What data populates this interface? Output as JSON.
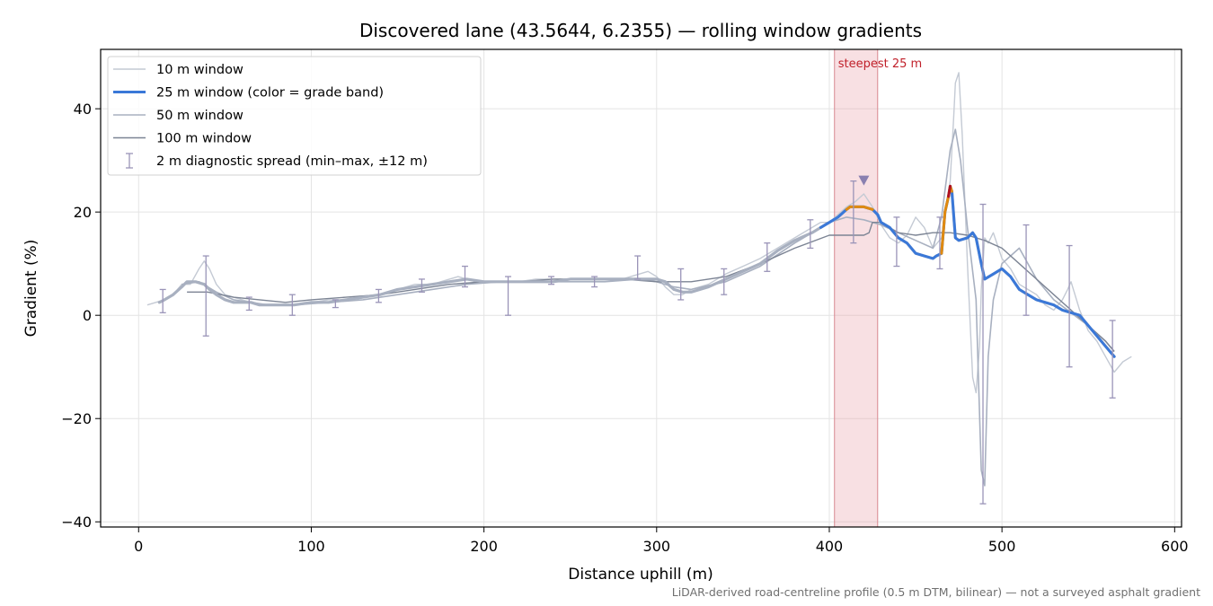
{
  "chart_data": {
    "type": "line",
    "title": "Discovered lane (43.5644, 6.2355) — rolling window gradients",
    "xlabel": "Distance uphill (m)",
    "ylabel": "Gradient (%)",
    "xlim": [
      -22,
      604
    ],
    "ylim": [
      -41,
      51.5
    ],
    "xticks": [
      0,
      100,
      200,
      300,
      400,
      500,
      600
    ],
    "yticks": [
      -40,
      -20,
      0,
      20,
      40
    ],
    "ytick_labels": [
      "−40",
      "−20",
      "0",
      "20",
      "40"
    ],
    "grid": true,
    "legend_position": "top-left",
    "footnote": "LiDAR-derived road-centreline profile (0.5 m DTM, bilinear) — not a surveyed asphalt gradient",
    "steepest_band": {
      "x_start": 403,
      "x_end": 428,
      "label": "steepest 25 m",
      "color": "#e8a0a8"
    },
    "peak_marker": {
      "x": 420,
      "y": 26,
      "color": "#8a80b0"
    },
    "colors": {
      "w10": "#c4cad4",
      "w25": "#3a78d8",
      "w50": "#a8b0c0",
      "w100": "#7c8494",
      "spread": "#9a94b8",
      "band_orange": "#e08a10",
      "band_red": "#b01020"
    },
    "series": [
      {
        "name": "10 m window",
        "key": "w10",
        "x": [
          5,
          10,
          15,
          20,
          25,
          30,
          35,
          38,
          41,
          45,
          50,
          55,
          60,
          65,
          70,
          80,
          90,
          100,
          110,
          120,
          130,
          140,
          150,
          160,
          170,
          180,
          185,
          190,
          195,
          200,
          210,
          220,
          230,
          240,
          250,
          260,
          270,
          280,
          285,
          290,
          295,
          300,
          305,
          310,
          315,
          320,
          330,
          340,
          350,
          360,
          370,
          380,
          390,
          395,
          400,
          405,
          410,
          415,
          420,
          425,
          430,
          435,
          440,
          445,
          450,
          455,
          460,
          465,
          468,
          470,
          472,
          473,
          475,
          477,
          480,
          483,
          485,
          487,
          488,
          490,
          492,
          495,
          500,
          505,
          510,
          515,
          520,
          525,
          530,
          535,
          538,
          540,
          545,
          550,
          555,
          560,
          565,
          570,
          575
        ],
        "y": [
          2,
          2.5,
          3,
          4,
          6,
          6,
          9,
          10.5,
          9,
          6,
          4,
          3.5,
          3,
          2.5,
          2,
          2,
          2,
          2.5,
          3,
          3,
          3.5,
          4,
          5,
          6,
          6,
          7,
          7.5,
          7,
          6.5,
          6.5,
          6.5,
          6.5,
          7,
          7,
          7,
          7,
          7,
          7,
          7.5,
          8,
          8.5,
          7.5,
          5.5,
          4,
          4,
          5,
          6,
          8,
          9.5,
          11,
          13,
          15,
          17,
          18,
          18,
          19.5,
          21,
          22,
          23.5,
          21,
          17.5,
          15,
          14,
          15.5,
          19,
          17,
          13,
          15,
          22,
          26,
          38,
          45,
          47,
          35,
          10,
          -12,
          -15,
          -6,
          5,
          15,
          14,
          16,
          11,
          9,
          6,
          5,
          4,
          2,
          1,
          3,
          5,
          6.5,
          1,
          -3,
          -5,
          -8,
          -11,
          -9,
          -8
        ]
      },
      {
        "name": "25 m window (color = grade band)",
        "key": "w25",
        "x": [
          12,
          15,
          20,
          25,
          28,
          33,
          38,
          41,
          45,
          50,
          55,
          60,
          65,
          70,
          80,
          90,
          100,
          110,
          120,
          130,
          140,
          150,
          160,
          170,
          180,
          190,
          200,
          210,
          220,
          230,
          240,
          250,
          260,
          270,
          280,
          290,
          300,
          305,
          310,
          315,
          320,
          330,
          340,
          350,
          360,
          370,
          380,
          390,
          395,
          400,
          405,
          410,
          412,
          415,
          420,
          425,
          428,
          430,
          435,
          440,
          445,
          450,
          455,
          460,
          462,
          465,
          467,
          469,
          470,
          471,
          473,
          475,
          480,
          483,
          485,
          488,
          490,
          495,
          500,
          505,
          510,
          515,
          520,
          525,
          530,
          535,
          540,
          545,
          550,
          555,
          560,
          565
        ],
        "y": [
          2.5,
          3,
          4,
          5.5,
          6.5,
          6.5,
          6,
          5,
          4,
          3,
          2.5,
          2.5,
          2.5,
          2,
          2,
          2,
          2.5,
          2.5,
          3,
          3.5,
          4,
          5,
          5.5,
          6,
          6.5,
          7,
          6.5,
          6.5,
          6.5,
          6.5,
          6.5,
          7,
          7,
          7,
          7,
          7,
          7,
          6.5,
          5,
          4.5,
          4.5,
          5.5,
          7,
          8.5,
          10,
          12.5,
          14.5,
          16,
          17,
          18,
          19,
          20.5,
          21,
          21,
          21,
          20.5,
          19.5,
          18,
          17,
          15,
          14,
          12,
          11.5,
          11,
          11.5,
          12,
          20,
          23,
          25,
          24,
          15,
          14.5,
          15,
          16,
          15,
          10,
          7,
          8,
          9,
          7.5,
          5,
          4,
          3,
          2.5,
          2,
          1,
          0.5,
          0,
          -2,
          -4,
          -6,
          -8
        ],
        "bands": [
          {
            "from": 408,
            "to": 427,
            "color_key": "band_orange"
          },
          {
            "from": 465,
            "to": 471,
            "color_key": "band_orange"
          },
          {
            "from": 468,
            "to": 470,
            "color_key": "band_red"
          }
        ]
      },
      {
        "name": "50 m window",
        "key": "w50",
        "x": [
          25,
          35,
          45,
          55,
          65,
          75,
          90,
          110,
          130,
          150,
          170,
          190,
          210,
          230,
          250,
          270,
          290,
          300,
          310,
          320,
          340,
          360,
          380,
          400,
          410,
          420,
          430,
          440,
          450,
          460,
          465,
          470,
          473,
          476,
          480,
          485,
          488,
          490,
          492,
          495,
          500,
          510,
          520,
          530,
          540,
          550,
          560,
          565
        ],
        "y": [
          6,
          6.5,
          4.5,
          3,
          2.5,
          2,
          2,
          2.5,
          3,
          4,
          5,
          6,
          6.5,
          6.5,
          6.5,
          6.5,
          7,
          6.5,
          5.5,
          5,
          6.5,
          9.5,
          14,
          18,
          19,
          18.5,
          17.5,
          16,
          14.5,
          13,
          19,
          32,
          36,
          30,
          17,
          3,
          -30,
          -33,
          -8,
          3,
          10,
          13,
          7,
          3,
          0.5,
          -2,
          -5,
          -7
        ]
      },
      {
        "name": "100 m window",
        "key": "w100",
        "x": [
          28,
          40,
          55,
          70,
          85,
          100,
          120,
          140,
          160,
          180,
          200,
          220,
          240,
          260,
          280,
          300,
          320,
          340,
          360,
          380,
          400,
          410,
          420,
          423,
          425,
          430,
          440,
          450,
          460,
          470,
          480,
          490,
          500,
          510,
          520,
          530,
          540,
          550,
          560,
          565
        ],
        "y": [
          4.5,
          4.5,
          3.5,
          3,
          2.5,
          3,
          3.5,
          4,
          5,
          6,
          6.5,
          6.5,
          7,
          7,
          7,
          6.5,
          6.5,
          7.5,
          10,
          13,
          15.5,
          15.5,
          15.5,
          16,
          18,
          18,
          16,
          15.5,
          16,
          16,
          15.5,
          14.5,
          13,
          10,
          7,
          4,
          1,
          -2,
          -5,
          -7
        ]
      }
    ],
    "spread_bars": {
      "name": "2 m diagnostic spread (min–max, ±12 m)",
      "key": "spread",
      "x": [
        14,
        39,
        64,
        89,
        114,
        139,
        164,
        189,
        214,
        239,
        264,
        289,
        314,
        339,
        364,
        389,
        414,
        439,
        464,
        489,
        514,
        539,
        564
      ],
      "ymin": [
        0.5,
        -4,
        1,
        0,
        1.5,
        2.5,
        4.5,
        5.5,
        0,
        6,
        5.5,
        7,
        3,
        4,
        8.5,
        13,
        14,
        9.5,
        9,
        -36.5,
        0,
        -10,
        -16
      ],
      "ymax": [
        5,
        11.5,
        3.5,
        4,
        3,
        5,
        7,
        9.5,
        7.5,
        7.5,
        7.5,
        11.5,
        9,
        9,
        14,
        18.5,
        26,
        19,
        19,
        21.5,
        17.5,
        13.5,
        -1
      ]
    }
  }
}
